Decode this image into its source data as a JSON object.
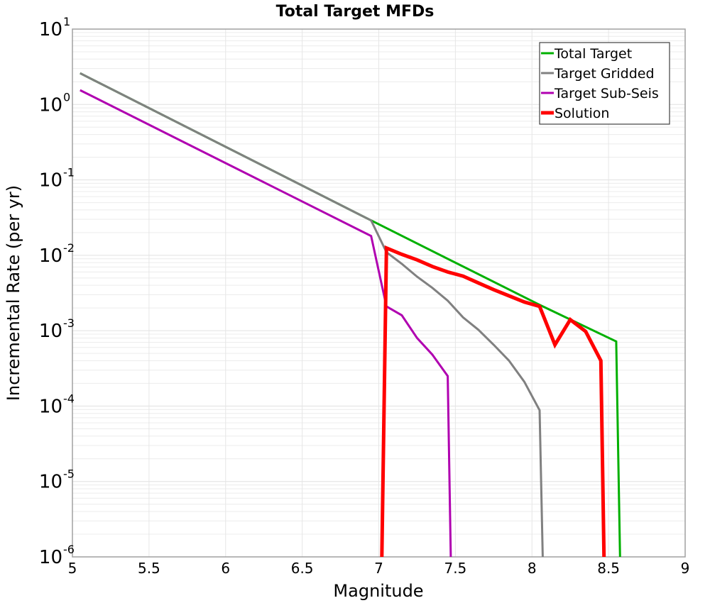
{
  "chart_data": {
    "type": "line",
    "title": "Total Target MFDs",
    "xlabel": "Magnitude",
    "ylabel": "Incremental Rate (per yr)",
    "xlim": [
      5,
      9
    ],
    "ylim": [
      1e-06,
      10
    ],
    "yscale": "log",
    "grid": true,
    "legend_position": "upper right",
    "x_ticks": [
      "5",
      "5.5",
      "6",
      "6.5",
      "7",
      "7.5",
      "8",
      "8.5",
      "9"
    ],
    "y_ticks": [
      {
        "base": "10",
        "exp": "1",
        "value": 10
      },
      {
        "base": "10",
        "exp": "0",
        "value": 1
      },
      {
        "base": "10",
        "exp": "-1",
        "value": 0.1
      },
      {
        "base": "10",
        "exp": "-2",
        "value": 0.01
      },
      {
        "base": "10",
        "exp": "-3",
        "value": 0.001
      },
      {
        "base": "10",
        "exp": "-4",
        "value": 0.0001
      },
      {
        "base": "10",
        "exp": "-5",
        "value": 1e-05
      },
      {
        "base": "10",
        "exp": "-6",
        "value": 1e-06
      }
    ],
    "series": [
      {
        "name": "Total Target",
        "color": "#00b000",
        "width": 3,
        "points": [
          [
            5.05,
            2.6
          ],
          [
            6.95,
            0.029
          ],
          [
            8.05,
            0.0022
          ],
          [
            8.55,
            0.00072
          ],
          [
            8.575,
            1e-06
          ]
        ]
      },
      {
        "name": "Target Gridded",
        "color": "#808080",
        "width": 3,
        "points": [
          [
            5.05,
            2.6
          ],
          [
            6.95,
            0.029
          ],
          [
            7.05,
            0.011
          ],
          [
            7.15,
            0.0077
          ],
          [
            7.25,
            0.0052
          ],
          [
            7.35,
            0.0037
          ],
          [
            7.45,
            0.0025
          ],
          [
            7.55,
            0.0015
          ],
          [
            7.65,
            0.00103
          ],
          [
            7.75,
            0.00065
          ],
          [
            7.85,
            0.0004
          ],
          [
            7.95,
            0.00021
          ],
          [
            8.05,
            8.8e-05
          ],
          [
            8.07,
            1e-06
          ]
        ]
      },
      {
        "name": "Target Sub-Seis",
        "color": "#b000b0",
        "width": 3,
        "points": [
          [
            5.05,
            1.55
          ],
          [
            6.95,
            0.018
          ],
          [
            7.05,
            0.0021
          ],
          [
            7.15,
            0.0016
          ],
          [
            7.25,
            0.0008
          ],
          [
            7.35,
            0.00048
          ],
          [
            7.45,
            0.00025
          ],
          [
            7.47,
            1e-06
          ]
        ]
      },
      {
        "name": "Solution",
        "color": "#ff0000",
        "width": 5,
        "points": [
          [
            7.02,
            1e-06
          ],
          [
            7.05,
            0.0125
          ],
          [
            7.15,
            0.0103
          ],
          [
            7.25,
            0.0087
          ],
          [
            7.35,
            0.0071
          ],
          [
            7.45,
            0.006
          ],
          [
            7.55,
            0.0053
          ],
          [
            7.65,
            0.0043
          ],
          [
            7.75,
            0.0035
          ],
          [
            7.85,
            0.0029
          ],
          [
            7.95,
            0.0024
          ],
          [
            8.05,
            0.0021
          ],
          [
            8.15,
            0.00065
          ],
          [
            8.25,
            0.0014
          ],
          [
            8.35,
            0.00098
          ],
          [
            8.45,
            0.0004
          ],
          [
            8.47,
            1e-06
          ]
        ]
      }
    ],
    "legend": [
      {
        "label": "Total Target",
        "color": "#00b000"
      },
      {
        "label": "Target Gridded",
        "color": "#808080"
      },
      {
        "label": "Target Sub-Seis",
        "color": "#b000b0"
      },
      {
        "label": "Solution",
        "color": "#ff0000"
      }
    ]
  }
}
